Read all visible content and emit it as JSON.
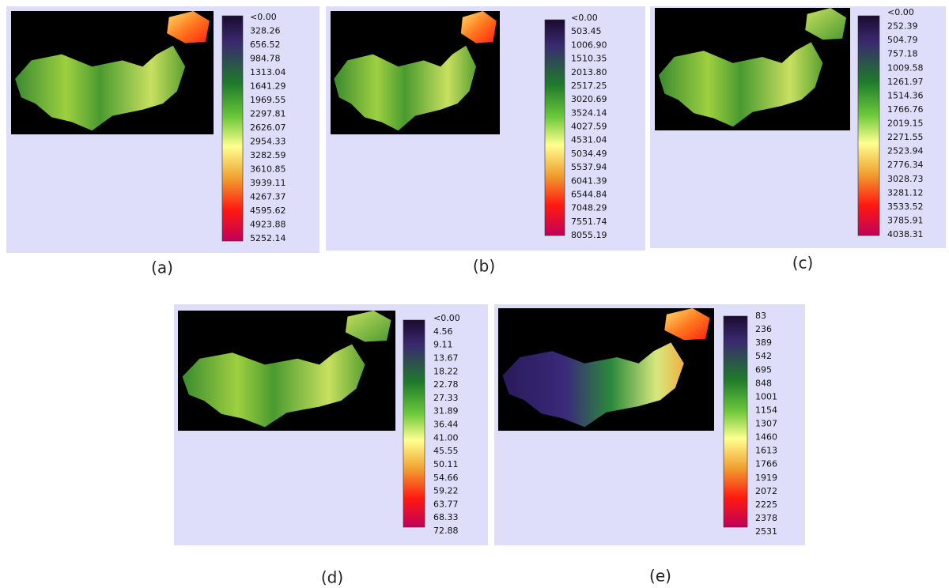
{
  "panels": [
    {
      "caption": "(a)",
      "legend": [
        "<0.00",
        "328.26",
        "656.52",
        "984.78",
        "1313.04",
        "1641.29",
        "1969.55",
        "2297.81",
        "2626.07",
        "2954.33",
        "3282.59",
        "3610.85",
        "3939.11",
        "4267.37",
        "4595.62",
        "4923.88",
        "5252.14"
      ]
    },
    {
      "caption": "(b)",
      "legend": [
        "<0.00",
        "503.45",
        "1006.90",
        "1510.35",
        "2013.80",
        "2517.25",
        "3020.69",
        "3524.14",
        "4027.59",
        "4531.04",
        "5034.49",
        "5537.94",
        "6041.39",
        "6544.84",
        "7048.29",
        "7551.74",
        "8055.19"
      ]
    },
    {
      "caption": "(c)",
      "legend": [
        "<0.00",
        "252.39",
        "504.79",
        "757.18",
        "1009.58",
        "1261.97",
        "1514.36",
        "1766.76",
        "2019.15",
        "2271.55",
        "2523.94",
        "2776.34",
        "3028.73",
        "3281.12",
        "3533.52",
        "3785.91",
        "4038.31"
      ]
    },
    {
      "caption": "(d)",
      "legend": [
        "<0.00",
        "4.56",
        "9.11",
        "13.67",
        "18.22",
        "22.78",
        "27.33",
        "31.89",
        "36.44",
        "41.00",
        "45.55",
        "50.11",
        "54.66",
        "59.22",
        "63.77",
        "68.33",
        "72.88"
      ]
    },
    {
      "caption": "(e)",
      "legend": [
        "83",
        "236",
        "389",
        "542",
        "695",
        "848",
        "1001",
        "1154",
        "1307",
        "1460",
        "1613",
        "1766",
        "1919",
        "2072",
        "2225",
        "2378",
        "2531"
      ]
    }
  ]
}
